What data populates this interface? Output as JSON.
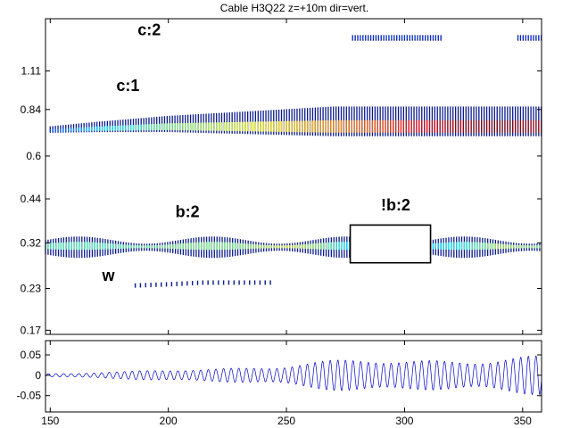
{
  "chart_data": [
    {
      "type": "heatmap",
      "title": "Cable H3Q22 z=+10m dir=vert.",
      "xlim": [
        148,
        358
      ],
      "ylim": [
        0.165,
        1.62
      ],
      "y_scale": "log",
      "x_ticks": [
        150,
        200,
        250,
        300,
        350
      ],
      "y_ticks": [
        0.17,
        0.23,
        0.32,
        0.44,
        0.6,
        0.84,
        1.11
      ],
      "y_tick_labels": [
        "0.17",
        "0.23",
        "0.32",
        "0.44",
        "0.6",
        "0.84",
        "1.11"
      ],
      "grid": false,
      "colormap": "jet",
      "annotations": [
        {
          "text": "c:2",
          "x": 187,
          "y": 1.44
        },
        {
          "text": "c:1",
          "x": 178,
          "y": 0.96
        },
        {
          "text": "b:2",
          "x": 203,
          "y": 0.386
        },
        {
          "text": "!b:2",
          "x": 290,
          "y": 0.405
        },
        {
          "text": "w",
          "x": 172,
          "y": 0.243
        }
      ],
      "highlight_box": {
        "x": [
          277,
          311
        ],
        "y": [
          0.277,
          0.364
        ]
      },
      "ridges": [
        {
          "name": "c:2",
          "x": [
            278,
            293,
            305,
            316
          ],
          "y": [
            1.41,
            1.41,
            1.41,
            1.41
          ],
          "intensity": [
            0.18,
            0.2,
            0.2,
            0.18
          ]
        },
        {
          "name": "c:2",
          "x": [
            348,
            358
          ],
          "y": [
            1.41,
            1.41
          ],
          "intensity": [
            0.18,
            0.18
          ]
        },
        {
          "name": "c:1",
          "x": [
            150,
            170,
            200,
            230,
            260,
            290,
            320,
            340,
            358
          ],
          "y": [
            0.72,
            0.73,
            0.74,
            0.74,
            0.74,
            0.74,
            0.74,
            0.74,
            0.74
          ],
          "intensity": [
            0.2,
            0.35,
            0.5,
            0.6,
            0.7,
            0.8,
            0.95,
            1.0,
            0.95
          ]
        },
        {
          "name": "b:2",
          "x": [
            148,
            175,
            205,
            230,
            250,
            265,
            277
          ],
          "y": [
            0.31,
            0.31,
            0.31,
            0.31,
            0.31,
            0.31,
            0.31
          ],
          "intensity": [
            0.45,
            0.45,
            0.5,
            0.5,
            0.6,
            0.5,
            0.35
          ]
        },
        {
          "name": "b:2",
          "x": [
            311,
            325,
            340,
            358
          ],
          "y": [
            0.31,
            0.31,
            0.31,
            0.31
          ],
          "intensity": [
            0.35,
            0.4,
            0.55,
            0.5
          ]
        },
        {
          "name": "w",
          "x": [
            186,
            200,
            215,
            230,
            245
          ],
          "y": [
            0.235,
            0.237,
            0.24,
            0.24,
            0.24
          ],
          "intensity": [
            0.1,
            0.15,
            0.2,
            0.2,
            0.15
          ]
        }
      ]
    },
    {
      "type": "line",
      "xlim": [
        148,
        358
      ],
      "ylim": [
        -0.09,
        0.085
      ],
      "x_ticks": [
        150,
        200,
        250,
        300,
        350
      ],
      "y_ticks": [
        0.05,
        0,
        -0.05
      ],
      "y_tick_labels": [
        "0.05",
        "0",
        "-0.05"
      ],
      "grid": false,
      "series": [
        {
          "color": "#0000cc",
          "oscillation_frequency_hz": 0.31,
          "amplitude_envelope": {
            "x": [
              148,
              180,
              220,
              260,
              300,
              330,
              358
            ],
            "y": [
              0.006,
              0.009,
              0.02,
              0.035,
              0.045,
              0.05,
              0.048
            ]
          }
        }
      ]
    }
  ]
}
